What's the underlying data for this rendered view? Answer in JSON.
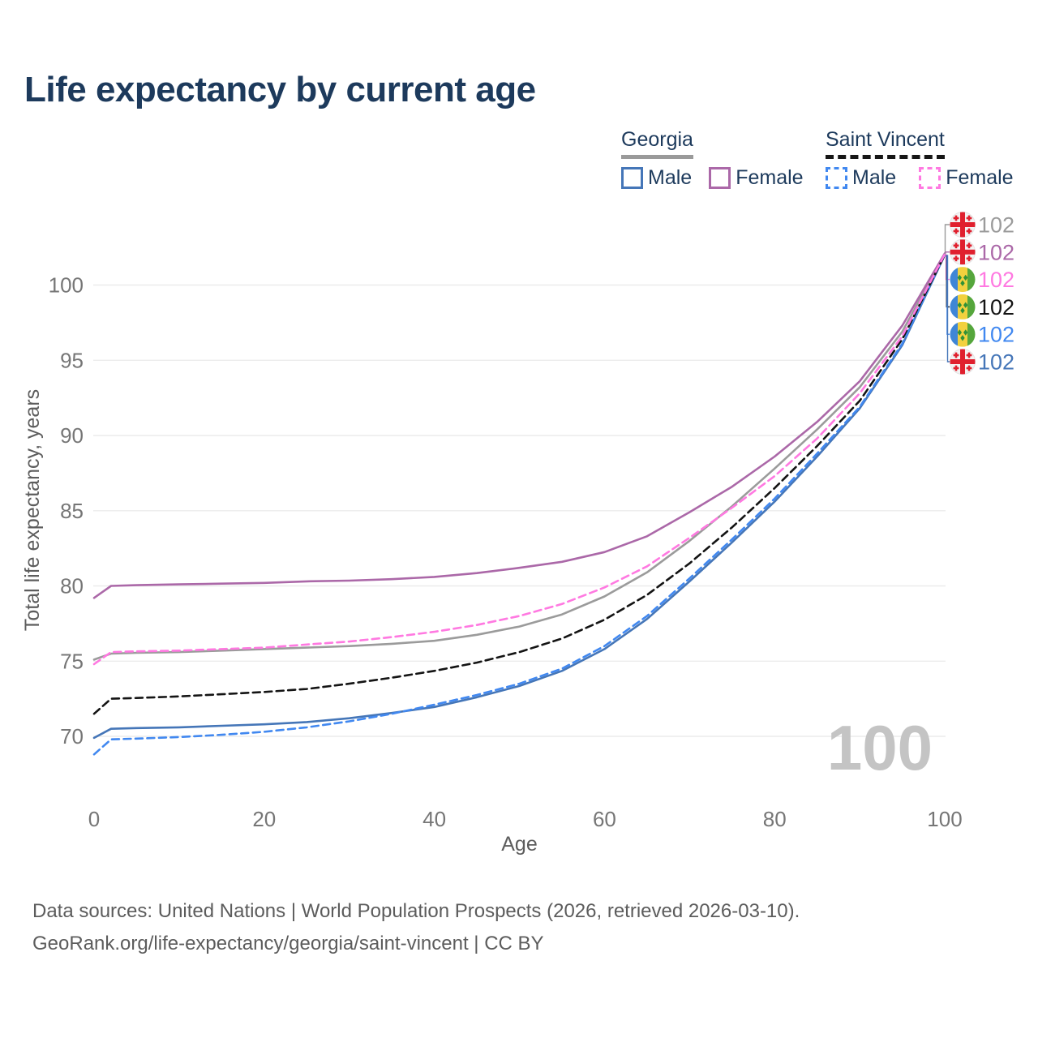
{
  "title": "Life expectancy by current age",
  "legend": {
    "groups": [
      {
        "name": "Georgia",
        "style": "solid",
        "underline_color": "#9a9a9a",
        "items": [
          {
            "label": "Male",
            "color": "#4576b8",
            "dashed": false
          },
          {
            "label": "Female",
            "color": "#ab68a8",
            "dashed": false
          }
        ]
      },
      {
        "name": "Saint Vincent",
        "style": "dashed",
        "underline_color": "#161616",
        "items": [
          {
            "label": "Male",
            "color": "#4188f0",
            "dashed": true
          },
          {
            "label": "Female",
            "color": "#ff79e1",
            "dashed": true
          }
        ]
      }
    ]
  },
  "watermark": "100",
  "footer": {
    "line1": "Data sources: United Nations | World Population Prospects (2026, retrieved 2026-03-10).",
    "line2": "GeoRank.org/life-expectancy/georgia/saint-vincent | CC BY"
  },
  "chart_data": {
    "type": "line",
    "title": "Life expectancy by current age",
    "xlabel": "Age",
    "ylabel": "Total life expectancy, years",
    "x_ticks": [
      0,
      20,
      40,
      60,
      80,
      100
    ],
    "y_ticks": [
      70,
      75,
      80,
      85,
      90,
      95,
      100
    ],
    "xlim": [
      0,
      100
    ],
    "ylim": [
      67.5,
      103
    ],
    "grid": "horizontal-only",
    "legend_position": "top-right",
    "x": [
      0,
      2,
      5,
      10,
      15,
      20,
      25,
      30,
      35,
      40,
      45,
      50,
      55,
      60,
      65,
      70,
      75,
      80,
      85,
      90,
      95,
      100
    ],
    "series": [
      {
        "name": "Georgia Male",
        "country": "georgia",
        "sex": "male",
        "color": "#4576b8",
        "dashed": false,
        "end_label": "102",
        "end_row": 5,
        "values": [
          69.9,
          70.5,
          70.55,
          70.6,
          70.7,
          70.8,
          70.95,
          71.2,
          71.55,
          71.95,
          72.6,
          73.35,
          74.35,
          75.8,
          77.8,
          80.3,
          82.9,
          85.6,
          88.6,
          91.8,
          96.0,
          102.0
        ]
      },
      {
        "name": "Georgia",
        "country": "georgia",
        "sex": "total",
        "color": "#9b9b9b",
        "dashed": false,
        "end_label": "102",
        "end_row": 0,
        "values": [
          75.1,
          75.5,
          75.55,
          75.6,
          75.7,
          75.8,
          75.9,
          76.0,
          76.15,
          76.35,
          76.75,
          77.3,
          78.1,
          79.3,
          80.9,
          83.0,
          85.3,
          87.8,
          90.4,
          93.2,
          96.9,
          102.05
        ]
      },
      {
        "name": "Georgia Female",
        "country": "georgia",
        "sex": "female",
        "color": "#ab68a8",
        "dashed": false,
        "end_label": "102",
        "end_row": 1,
        "values": [
          79.2,
          80.0,
          80.05,
          80.1,
          80.15,
          80.2,
          80.3,
          80.35,
          80.45,
          80.6,
          80.85,
          81.2,
          81.6,
          82.25,
          83.3,
          84.9,
          86.6,
          88.6,
          90.9,
          93.6,
          97.3,
          102.1
        ]
      },
      {
        "name": "Saint Vincent Male",
        "country": "saint-vincent",
        "sex": "male",
        "color": "#4188f0",
        "dashed": true,
        "end_label": "102",
        "end_row": 4,
        "values": [
          68.8,
          69.8,
          69.85,
          69.95,
          70.1,
          70.3,
          70.6,
          71.0,
          71.5,
          72.1,
          72.75,
          73.5,
          74.5,
          76.0,
          78.0,
          80.5,
          83.1,
          85.8,
          88.8,
          91.9,
          96.1,
          102.0
        ]
      },
      {
        "name": "Saint Vincent",
        "country": "saint-vincent",
        "sex": "total",
        "color": "#141414",
        "dashed": true,
        "end_label": "102",
        "end_row": 3,
        "values": [
          71.5,
          72.5,
          72.55,
          72.65,
          72.8,
          72.95,
          73.15,
          73.5,
          73.9,
          74.35,
          74.9,
          75.6,
          76.5,
          77.75,
          79.4,
          81.5,
          83.9,
          86.5,
          89.3,
          92.3,
          96.4,
          102.0
        ]
      },
      {
        "name": "Saint Vincent Female",
        "country": "saint-vincent",
        "sex": "female",
        "color": "#ff79e1",
        "dashed": true,
        "end_label": "102",
        "end_row": 2,
        "values": [
          74.8,
          75.6,
          75.65,
          75.7,
          75.8,
          75.9,
          76.1,
          76.3,
          76.6,
          76.95,
          77.4,
          78.0,
          78.8,
          79.9,
          81.3,
          83.2,
          85.2,
          87.3,
          89.8,
          92.8,
          96.6,
          102.05
        ]
      }
    ]
  }
}
